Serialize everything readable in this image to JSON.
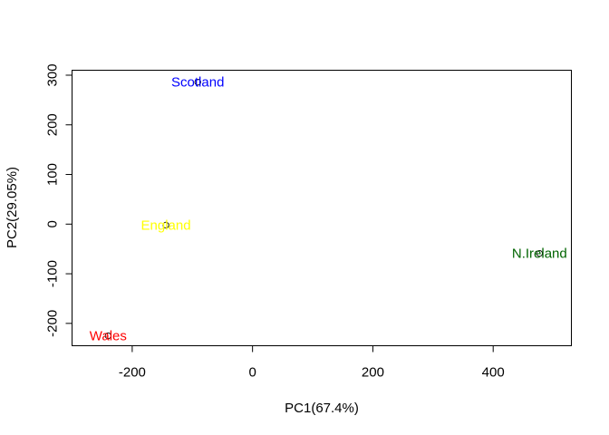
{
  "chart_data": {
    "type": "scatter",
    "title": "",
    "xlabel": "PC1(67.4%)",
    "ylabel": "PC2(29.05%)",
    "xlim": [
      -300,
      530
    ],
    "ylim": [
      -245,
      310
    ],
    "xticks": [
      -200,
      0,
      200,
      400
    ],
    "yticks": [
      -200,
      -100,
      0,
      100,
      200,
      300
    ],
    "xtick_labels": [
      "-200",
      "0",
      "200",
      "400"
    ],
    "ytick_labels": [
      "-200",
      "-100",
      "0",
      "100",
      "200",
      "300"
    ],
    "grid": false,
    "legend": "none",
    "points": [
      {
        "label": "England",
        "x": -144,
        "y": -2,
        "color": "#FFFF00"
      },
      {
        "label": "Wales",
        "x": -240,
        "y": -225,
        "color": "#FF0000"
      },
      {
        "label": "Scotland",
        "x": -91,
        "y": 286,
        "color": "#0000FF"
      },
      {
        "label": "N.Ireland",
        "x": 477,
        "y": -59,
        "color": "#006400"
      }
    ]
  }
}
